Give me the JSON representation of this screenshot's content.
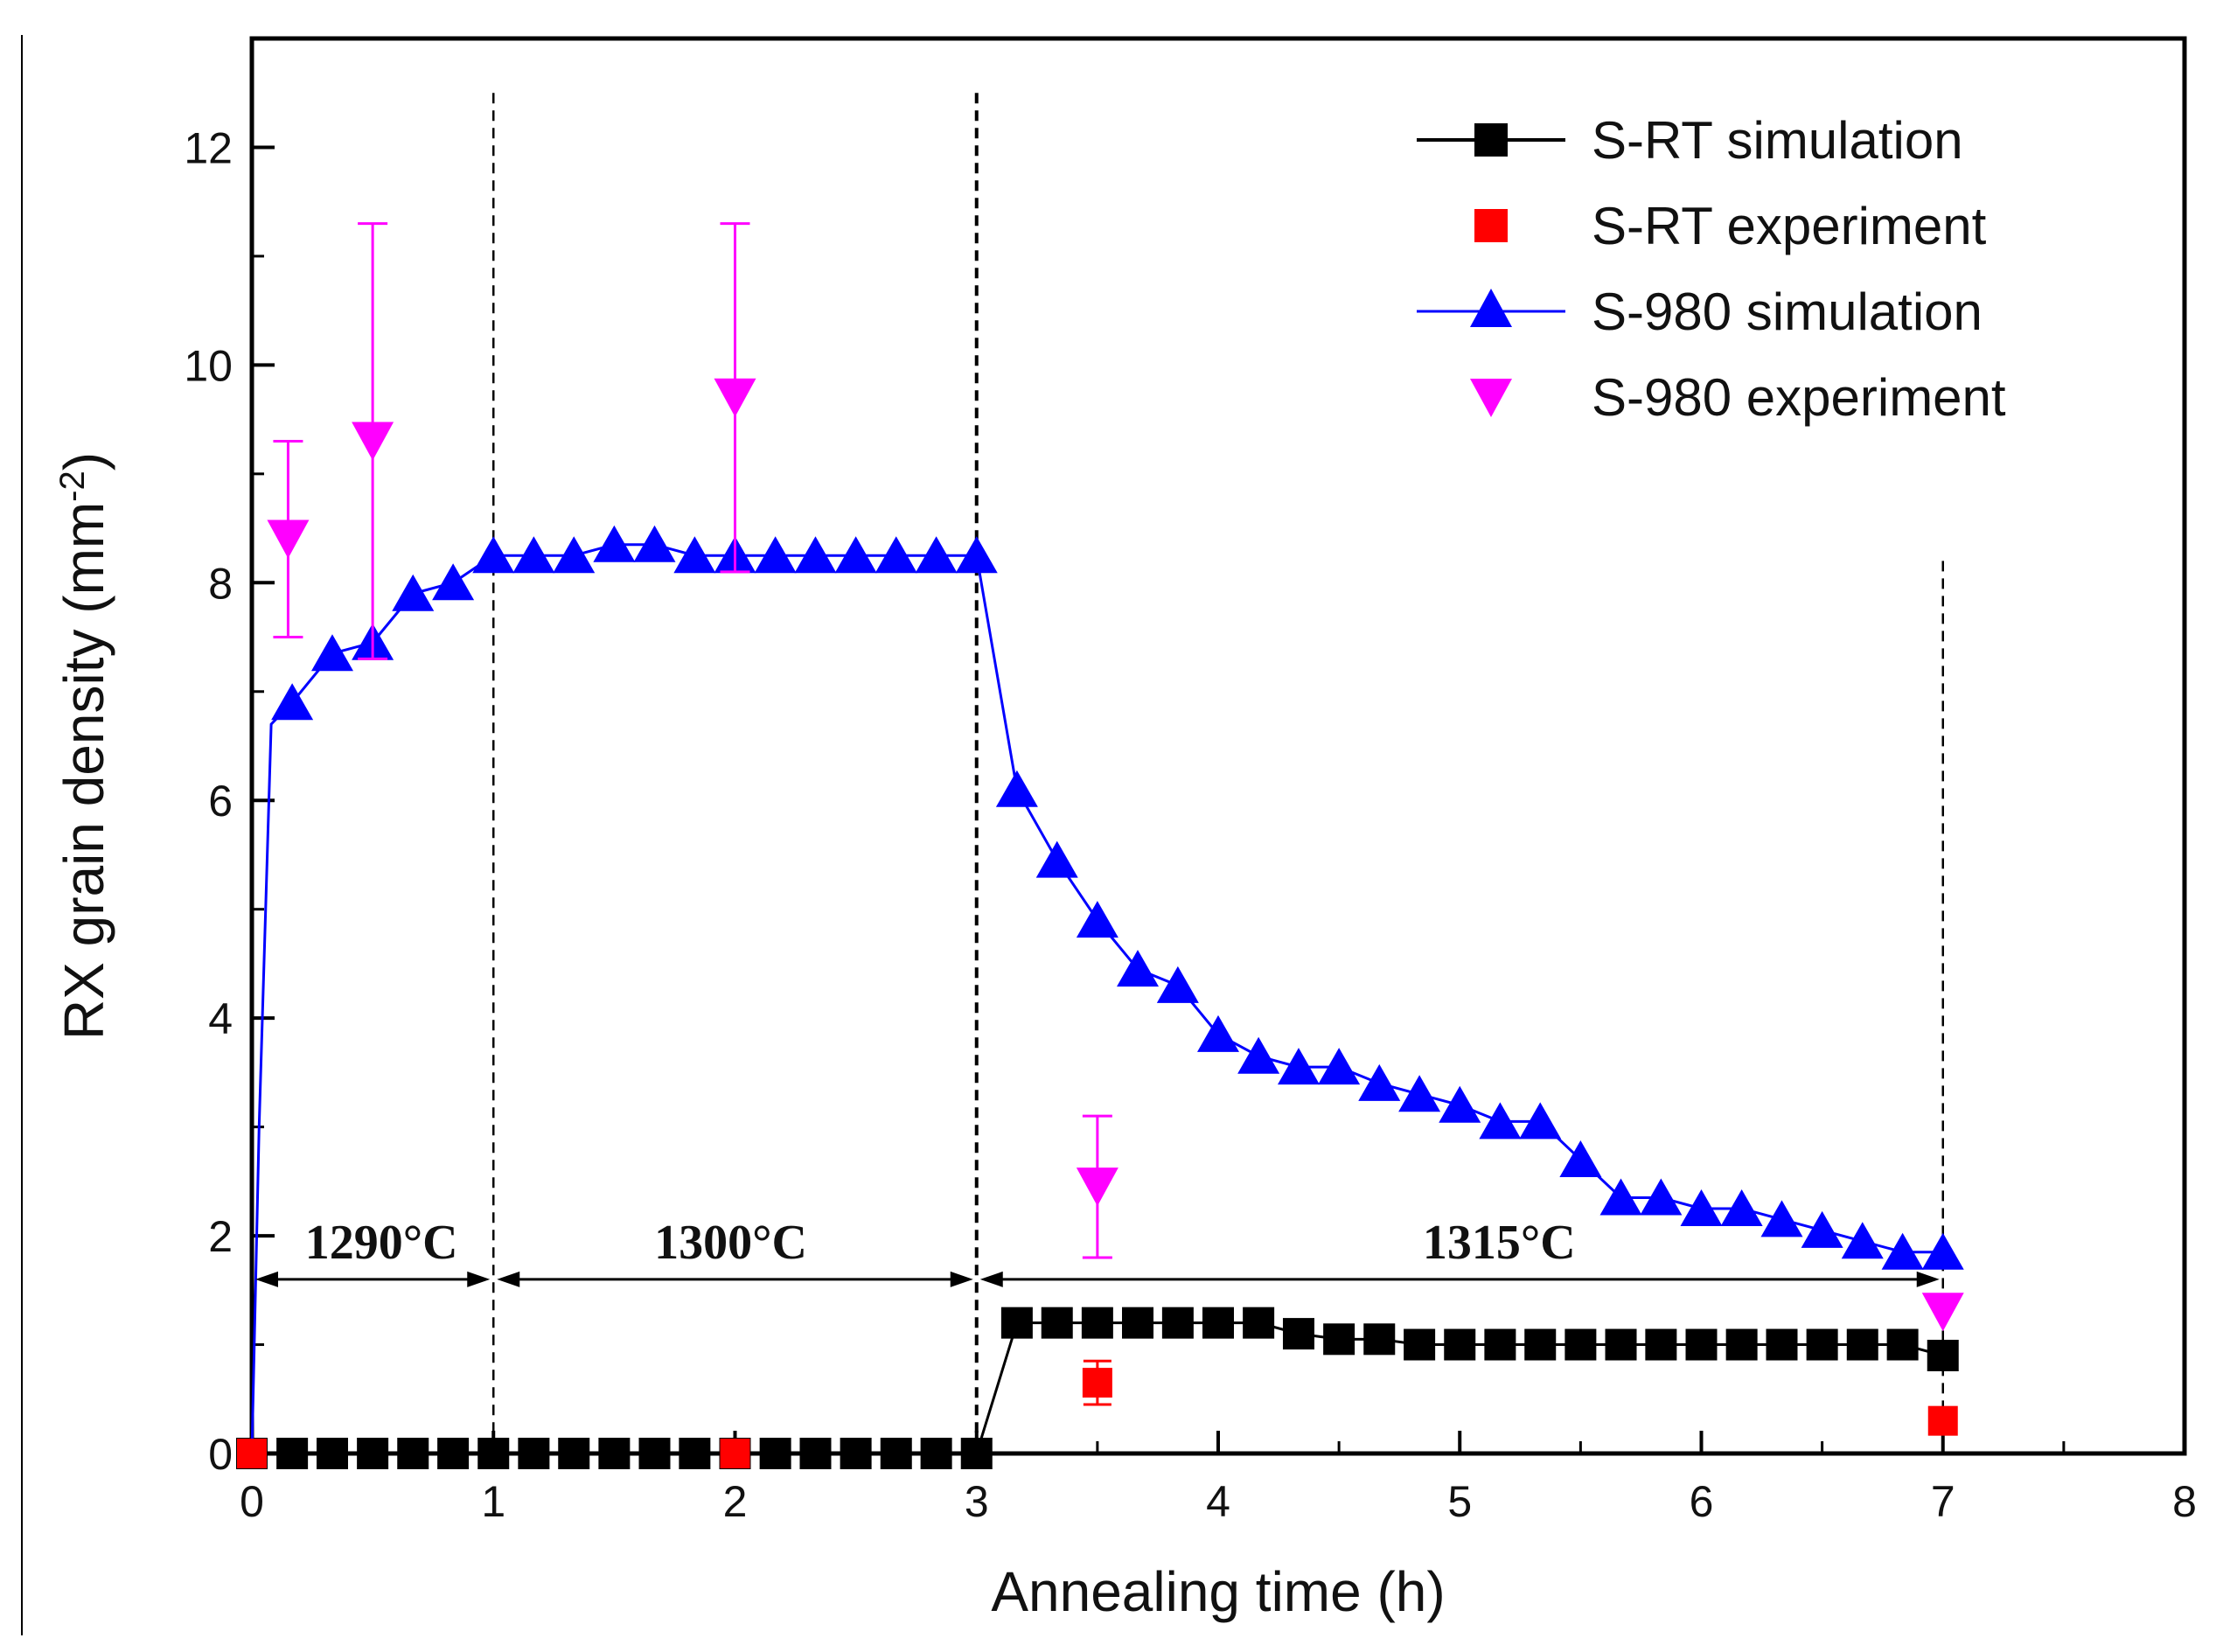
{
  "chart_data": {
    "type": "line",
    "title": "",
    "xlabel": "Annealing time (h)",
    "ylabel_main": "RX grain density (mm",
    "ylabel_sup": "-2",
    "ylabel_close": ")",
    "xlim": [
      0,
      8
    ],
    "ylim": [
      0,
      13
    ],
    "xticks": [
      "0",
      "1",
      "2",
      "3",
      "4",
      "5",
      "6",
      "7",
      "8"
    ],
    "yticks": [
      "0",
      "2",
      "4",
      "6",
      "8",
      "10",
      "12"
    ],
    "grid": false,
    "legend_position": "top-right",
    "colors": {
      "s_rt_sim": "#000000",
      "s_rt_exp": "#ff0000",
      "s_980_sim": "#0000ff",
      "s_980_exp": "#ff00ff"
    },
    "series": [
      {
        "name": "S-RT simulation",
        "style": "line-square",
        "x": [
          0,
          0.167,
          0.333,
          0.5,
          0.667,
          0.833,
          1.0,
          1.167,
          1.333,
          1.5,
          1.667,
          1.833,
          2.0,
          2.167,
          2.333,
          2.5,
          2.667,
          2.833,
          3.0,
          3.167,
          3.333,
          3.5,
          3.667,
          3.833,
          4.0,
          4.167,
          4.333,
          4.5,
          4.667,
          4.833,
          5.0,
          5.167,
          5.333,
          5.5,
          5.667,
          5.833,
          6.0,
          6.167,
          6.333,
          6.5,
          6.667,
          6.833,
          7.0
        ],
        "y": [
          0,
          0,
          0,
          0,
          0,
          0,
          0,
          0,
          0,
          0,
          0,
          0,
          0,
          0,
          0,
          0,
          0,
          0,
          0,
          1.2,
          1.2,
          1.2,
          1.2,
          1.2,
          1.2,
          1.2,
          1.1,
          1.05,
          1.05,
          1.0,
          1.0,
          1.0,
          1.0,
          1.0,
          1.0,
          1.0,
          1.0,
          1.0,
          1.0,
          1.0,
          1.0,
          1.0,
          0.9
        ]
      },
      {
        "name": "S-RT experiment",
        "style": "square",
        "points": [
          {
            "x": 0,
            "y": 0,
            "err": 0
          },
          {
            "x": 2.0,
            "y": 0,
            "err": 0
          },
          {
            "x": 3.5,
            "y": 0.65,
            "err": 0.2
          },
          {
            "x": 7.0,
            "y": 0.3,
            "err": 0
          }
        ]
      },
      {
        "name": "S-980 simulation",
        "style": "line-triangle-up",
        "line_x": [
          0,
          0.03,
          0.08,
          0.167
        ],
        "line_y": [
          0,
          3.0,
          6.7,
          6.9
        ],
        "x": [
          0.167,
          0.333,
          0.5,
          0.667,
          0.833,
          1.0,
          1.167,
          1.333,
          1.5,
          1.667,
          1.833,
          2.0,
          2.167,
          2.333,
          2.5,
          2.667,
          2.833,
          3.0,
          3.167,
          3.333,
          3.5,
          3.667,
          3.833,
          4.0,
          4.167,
          4.333,
          4.5,
          4.667,
          4.833,
          5.0,
          5.167,
          5.333,
          5.5,
          5.667,
          5.833,
          6.0,
          6.167,
          6.333,
          6.5,
          6.667,
          6.833,
          7.0
        ],
        "y": [
          6.9,
          7.35,
          7.45,
          7.9,
          8.0,
          8.25,
          8.25,
          8.25,
          8.35,
          8.35,
          8.25,
          8.25,
          8.25,
          8.25,
          8.25,
          8.25,
          8.25,
          8.25,
          6.1,
          5.45,
          4.9,
          4.45,
          4.3,
          3.85,
          3.65,
          3.55,
          3.55,
          3.4,
          3.3,
          3.2,
          3.05,
          3.05,
          2.7,
          2.35,
          2.35,
          2.25,
          2.25,
          2.15,
          2.05,
          1.95,
          1.85,
          1.85
        ]
      },
      {
        "name": "S-980 experiment",
        "style": "triangle-down",
        "points": [
          {
            "x": 0.15,
            "y": 8.4,
            "err": 0.9
          },
          {
            "x": 0.5,
            "y": 9.3,
            "err": 2.0
          },
          {
            "x": 2.0,
            "y": 9.7,
            "err": 1.6
          },
          {
            "x": 3.5,
            "y": 2.45,
            "err": 0.65
          },
          {
            "x": 7.0,
            "y": 1.3,
            "err": 0
          }
        ]
      }
    ],
    "phase_lines_x": [
      1,
      3,
      7
    ],
    "phase_arrow_y": 1.6,
    "regions": [
      {
        "label": "1290°C",
        "x_start": 0,
        "x_end": 1
      },
      {
        "label": "1300°C",
        "x_start": 1,
        "x_end": 3
      },
      {
        "label": "1315°C",
        "x_start": 3,
        "x_end": 7
      }
    ]
  }
}
